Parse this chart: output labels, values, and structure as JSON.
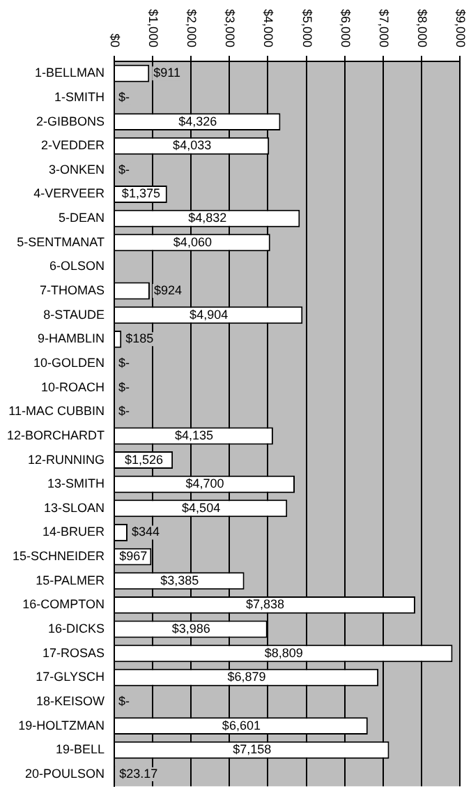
{
  "chart_data": {
    "type": "bar",
    "orientation": "horizontal",
    "categories": [
      "1-BELLMAN",
      "1-SMITH",
      "2-GIBBONS",
      "2-VEDDER",
      "3-ONKEN",
      "4-VERVEER",
      "5-DEAN",
      "5-SENTMANAT",
      "6-OLSON",
      "7-THOMAS",
      "8-STAUDE",
      "9-HAMBLIN",
      "10-GOLDEN",
      "10-ROACH",
      "11-MAC CUBBIN",
      "12-BORCHARDT",
      "12-RUNNING",
      "13-SMITH",
      "13-SLOAN",
      "14-BRUER",
      "15-SCHNEIDER",
      "15-PALMER",
      "16-COMPTON",
      "16-DICKS",
      "17-ROSAS",
      "17-GLYSCH",
      "18-KEISOW",
      "19-HOLTZMAN",
      "19-BELL",
      "20-POULSON"
    ],
    "values": [
      911,
      0,
      4326,
      4033,
      0,
      1375,
      4832,
      4060,
      null,
      924,
      4904,
      185,
      0,
      0,
      0,
      4135,
      1526,
      4700,
      4504,
      344,
      967,
      3385,
      7838,
      3986,
      8809,
      6879,
      0,
      6601,
      7158,
      23.17
    ],
    "value_labels": [
      "$911",
      "$-",
      "$4,326",
      "$4,033",
      "$-",
      "$1,375",
      "$4,832",
      "$4,060",
      null,
      "$924",
      "$4,904",
      "$185",
      "$-",
      "$-",
      "$-",
      "$4,135",
      "$1,526",
      "$4,700",
      "$4,504",
      "$344",
      "$967",
      "$3,385",
      "$7,838",
      "$3,986",
      "$8,809",
      "$6,879",
      "$-",
      "$6,601",
      "$7,158",
      "$23.17"
    ],
    "color": "#ffffff",
    "xlim": [
      0,
      9000
    ],
    "xticks": [
      {
        "value": 0,
        "label": "$0"
      },
      {
        "value": 1000,
        "label": "$1,000"
      },
      {
        "value": 2000,
        "label": "$2,000"
      },
      {
        "value": 3000,
        "label": "$3,000"
      },
      {
        "value": 4000,
        "label": "$4,000"
      },
      {
        "value": 5000,
        "label": "$5,000"
      },
      {
        "value": 6000,
        "label": "$6,000"
      },
      {
        "value": 7000,
        "label": "$7,000"
      },
      {
        "value": 8000,
        "label": "$8,000"
      },
      {
        "value": 9000,
        "label": "$9,000"
      }
    ],
    "grid": "x"
  }
}
